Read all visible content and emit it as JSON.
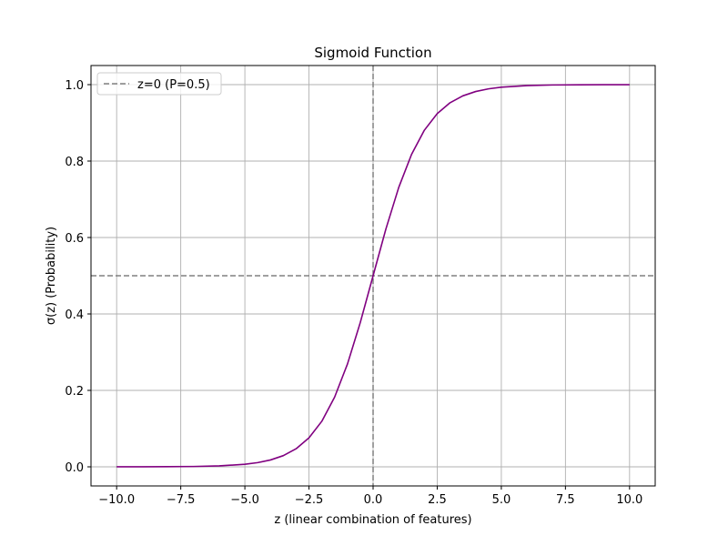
{
  "chart_data": {
    "type": "line",
    "title": "Sigmoid Function",
    "xlabel": "z (linear combination of features)",
    "ylabel": "σ(z) (Probability)",
    "xlim": [
      -11,
      11
    ],
    "ylim": [
      -0.05,
      1.05
    ],
    "x_ticks": [
      -10.0,
      -7.5,
      -5.0,
      -2.5,
      0.0,
      2.5,
      5.0,
      7.5,
      10.0
    ],
    "x_tick_labels": [
      "−10.0",
      "−7.5",
      "−5.0",
      "−2.5",
      "0.0",
      "2.5",
      "5.0",
      "7.5",
      "10.0"
    ],
    "y_ticks": [
      0.0,
      0.2,
      0.4,
      0.6,
      0.8,
      1.0
    ],
    "y_tick_labels": [
      "0.0",
      "0.2",
      "0.4",
      "0.6",
      "0.8",
      "1.0"
    ],
    "grid": true,
    "legend_position": "top-left",
    "legend": [
      {
        "label": "z=0 (P=0.5)",
        "color": "#808080",
        "style": "dashed"
      }
    ],
    "series": [
      {
        "color": "#800080",
        "x": [
          -10,
          -9,
          -8,
          -7,
          -6,
          -5,
          -4.5,
          -4,
          -3.5,
          -3,
          -2.5,
          -2,
          -1.5,
          -1,
          -0.5,
          0,
          0.5,
          1,
          1.5,
          2,
          2.5,
          3,
          3.5,
          4,
          4.5,
          5,
          6,
          7,
          8,
          9,
          10
        ],
        "y": [
          4.54e-05,
          0.000123,
          0.000335,
          0.000911,
          0.00247,
          0.00669,
          0.011,
          0.018,
          0.0293,
          0.0474,
          0.0759,
          0.1192,
          0.1824,
          0.2689,
          0.3775,
          0.5,
          0.6225,
          0.7311,
          0.8176,
          0.8808,
          0.9241,
          0.9526,
          0.9707,
          0.982,
          0.989,
          0.9933,
          0.99753,
          0.99909,
          0.99966,
          0.99988,
          0.99995
        ]
      }
    ],
    "reference_lines": [
      {
        "orientation": "vertical",
        "value": 0,
        "color": "#808080",
        "style": "dashed"
      },
      {
        "orientation": "horizontal",
        "value": 0.5,
        "color": "#808080",
        "style": "dashed"
      }
    ],
    "colors": {
      "grid": "#b0b0b0",
      "axis": "#000000"
    }
  }
}
